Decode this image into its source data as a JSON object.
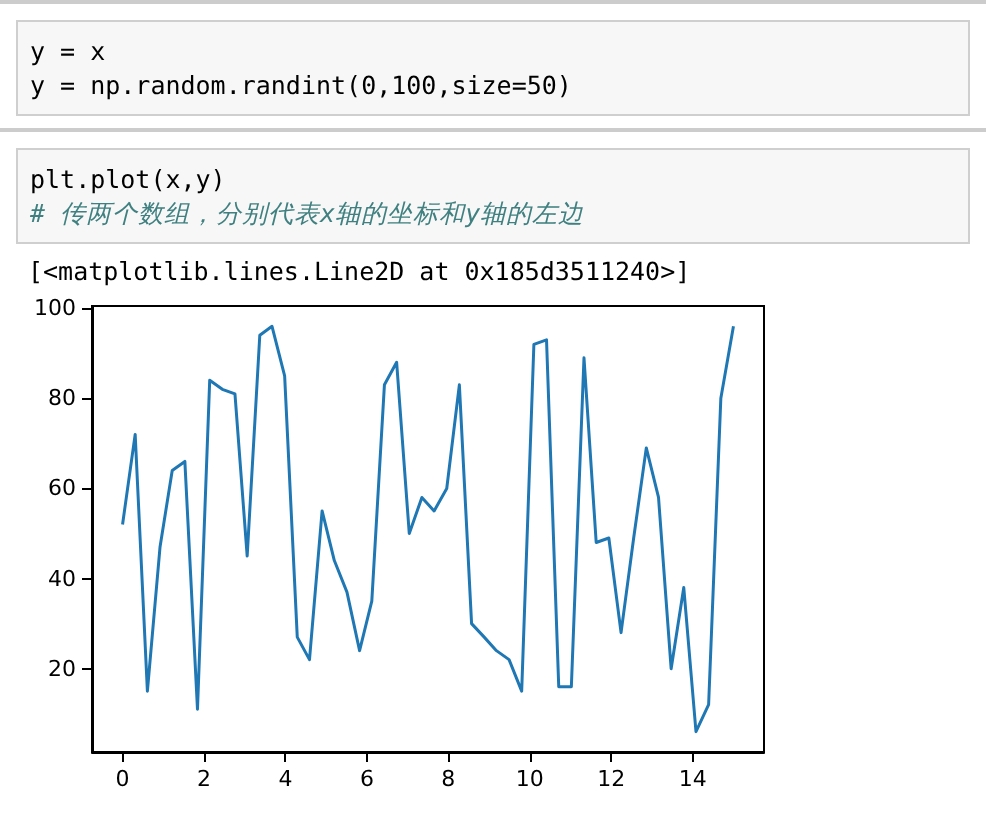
{
  "chart_data": {
    "type": "line",
    "annotations": [
      "y = x",
      "y = np.random.randint(0,100,size=50)",
      "plt.plot(x,y)",
      "# 传两个数组，分别代表x轴的坐标和y轴的左边",
      "[<matplotlib.lines.Line2D at 0x185d3511240>]"
    ],
    "x": [
      0,
      0.31,
      0.61,
      0.92,
      1.22,
      1.53,
      1.84,
      2.14,
      2.45,
      2.76,
      3.06,
      3.37,
      3.67,
      3.98,
      4.29,
      4.59,
      4.9,
      5.2,
      5.51,
      5.82,
      6.12,
      6.43,
      6.73,
      7.04,
      7.35,
      7.65,
      7.96,
      8.27,
      8.57,
      8.88,
      9.18,
      9.49,
      9.8,
      10.1,
      10.41,
      10.71,
      11.02,
      11.33,
      11.63,
      11.94,
      12.24,
      12.55,
      12.86,
      13.16,
      13.47,
      13.78,
      14.08,
      14.39,
      14.69,
      15
    ],
    "series": [
      {
        "color": "#1f77b4",
        "values": [
          52,
          72,
          15,
          47,
          64,
          66,
          11,
          84,
          82,
          81,
          45,
          94,
          96,
          85,
          27,
          22,
          55,
          44,
          37,
          24,
          35,
          83,
          88,
          50,
          58,
          55,
          60,
          83,
          30,
          27,
          24,
          22,
          15,
          92,
          93,
          16,
          16,
          89,
          48,
          49,
          28,
          49,
          69,
          58,
          20,
          38,
          6,
          12,
          80,
          96
        ]
      }
    ],
    "xlim": [
      -0.75,
      15.75
    ],
    "xticks": [
      0,
      2,
      4,
      6,
      8,
      10,
      12,
      14
    ],
    "ylim": [
      1.5,
      100.5
    ],
    "yticks": [
      20,
      40,
      60,
      80,
      100
    ],
    "grid": false,
    "marker": "none",
    "line_style": "solid"
  }
}
